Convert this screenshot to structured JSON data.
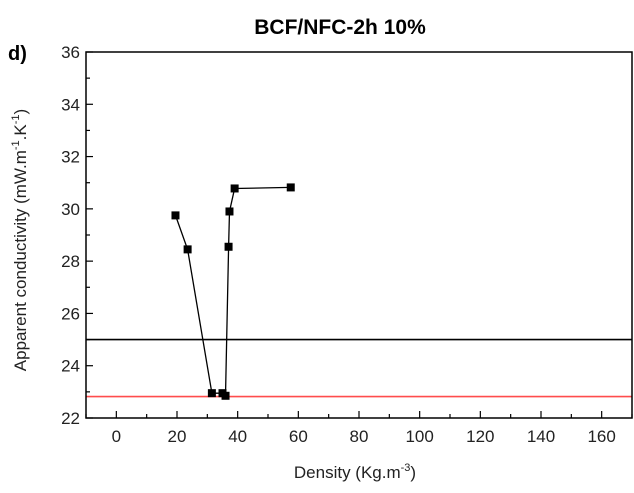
{
  "chart_data": {
    "type": "scatter",
    "panel_label": "d)",
    "title": "BCF/NFC-2h 10%",
    "xlabel": "Density (Kg.m",
    "xlabel_sup": "-3",
    "xlabel_end": ")",
    "ylabel": "Apparent conductivity (mW.m",
    "ylabel_sup1": "-1",
    "ylabel_mid": ".K",
    "ylabel_sup2": "-1",
    "ylabel_end": ")",
    "xlim": [
      -10,
      170
    ],
    "ylim": [
      22,
      36
    ],
    "xticks": [
      0,
      20,
      40,
      60,
      80,
      100,
      120,
      140,
      160
    ],
    "yticks": [
      22,
      24,
      26,
      28,
      30,
      32,
      34,
      36
    ],
    "grid": false,
    "series": [
      {
        "color": "#000000",
        "marker": "square",
        "points": [
          {
            "x": 19.5,
            "y": 29.75
          },
          {
            "x": 23.5,
            "y": 28.45
          },
          {
            "x": 31.5,
            "y": 22.95
          },
          {
            "x": 35.0,
            "y": 22.95
          },
          {
            "x": 36.0,
            "y": 22.85
          },
          {
            "x": 37.0,
            "y": 28.55
          },
          {
            "x": 37.3,
            "y": 29.9
          },
          {
            "x": 39.0,
            "y": 30.78
          },
          {
            "x": 57.5,
            "y": 30.82
          }
        ]
      }
    ],
    "reference_lines": [
      {
        "y": 25.0,
        "color": "#000000"
      },
      {
        "y": 22.82,
        "color": "#ff4d4d"
      }
    ]
  }
}
